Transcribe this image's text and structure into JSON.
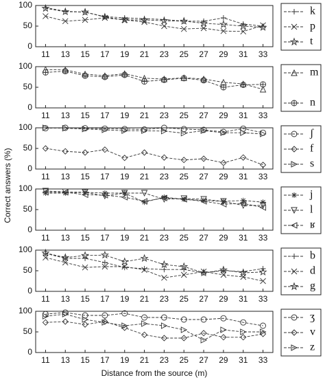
{
  "ylabel": "Correct answers (%)",
  "xlabel": "Distance from the source (m)",
  "chart_data": [
    {
      "type": "line",
      "x": [
        11,
        13,
        15,
        17,
        19,
        21,
        23,
        25,
        27,
        29,
        31,
        33
      ],
      "xlim": [
        10,
        34
      ],
      "xticks": [
        11,
        13,
        15,
        17,
        19,
        21,
        23,
        25,
        27,
        29,
        31,
        33
      ],
      "ylim": [
        0,
        100
      ],
      "yticks": [
        0,
        50,
        100
      ],
      "series": [
        {
          "name": "k",
          "color": "#333333",
          "marker": "plus",
          "values": [
            95,
            86,
            84,
            73,
            70,
            68,
            66,
            62,
            62,
            70,
            55,
            50
          ]
        },
        {
          "name": "p",
          "color": "#333333",
          "marker": "x",
          "values": [
            74,
            62,
            65,
            70,
            65,
            60,
            50,
            43,
            45,
            38,
            37,
            52
          ]
        },
        {
          "name": "t",
          "color": "#333333",
          "marker": "star",
          "values": [
            93,
            85,
            84,
            72,
            65,
            65,
            63,
            62,
            57,
            54,
            50,
            47
          ]
        }
      ]
    },
    {
      "type": "line",
      "x": [
        11,
        13,
        15,
        17,
        19,
        21,
        23,
        25,
        27,
        29,
        31,
        33
      ],
      "xlim": [
        10,
        34
      ],
      "xticks": [
        11,
        13,
        15,
        17,
        19,
        21,
        23,
        25,
        27,
        29,
        31,
        33
      ],
      "ylim": [
        0,
        100
      ],
      "yticks": [
        0,
        50,
        100
      ],
      "series": [
        {
          "name": "m",
          "color": "#333333",
          "marker": "triangle",
          "values": [
            93,
            92,
            82,
            78,
            83,
            72,
            70,
            73,
            70,
            62,
            58,
            45
          ]
        },
        {
          "name": "n",
          "color": "#333333",
          "marker": "circleplus",
          "values": [
            86,
            89,
            78,
            75,
            80,
            64,
            68,
            72,
            67,
            50,
            56,
            57
          ]
        }
      ]
    },
    {
      "type": "line",
      "x": [
        11,
        13,
        15,
        17,
        19,
        21,
        23,
        25,
        27,
        29,
        31,
        33
      ],
      "xlim": [
        10,
        34
      ],
      "xticks": [
        11,
        13,
        15,
        17,
        19,
        21,
        23,
        25,
        27,
        29,
        31,
        33
      ],
      "ylim": [
        0,
        100
      ],
      "yticks": [
        0,
        50,
        100
      ],
      "series": [
        {
          "name": "ʃ",
          "color": "#333333",
          "marker": "circle",
          "values": [
            99,
            100,
            99,
            98,
            97,
            96,
            100,
            97,
            95,
            90,
            98,
            88
          ]
        },
        {
          "name": "f",
          "color": "#333333",
          "marker": "diamond",
          "values": [
            50,
            43,
            40,
            47,
            27,
            40,
            28,
            22,
            25,
            15,
            28,
            10
          ]
        },
        {
          "name": "s",
          "color": "#333333",
          "marker": "triangle-right",
          "values": [
            100,
            99,
            97,
            95,
            93,
            93,
            92,
            87,
            93,
            88,
            88,
            85
          ]
        }
      ]
    },
    {
      "type": "line",
      "x": [
        11,
        13,
        15,
        17,
        19,
        21,
        23,
        25,
        27,
        29,
        31,
        33
      ],
      "xlim": [
        10,
        34
      ],
      "xticks": [
        11,
        13,
        15,
        17,
        19,
        21,
        23,
        25,
        27,
        29,
        31,
        33
      ],
      "ylim": [
        0,
        100
      ],
      "yticks": [
        0,
        50,
        100
      ],
      "series": [
        {
          "name": "j",
          "color": "#333333",
          "marker": "asterisk",
          "values": [
            90,
            90,
            92,
            90,
            90,
            68,
            80,
            75,
            72,
            70,
            72,
            68
          ]
        },
        {
          "name": "l",
          "color": "#333333",
          "marker": "triangle-down",
          "values": [
            95,
            93,
            92,
            83,
            90,
            90,
            75,
            77,
            75,
            70,
            60,
            60
          ]
        },
        {
          "name": "ʁ",
          "color": "#333333",
          "marker": "triangle-left",
          "values": [
            92,
            92,
            86,
            85,
            80,
            70,
            78,
            75,
            70,
            63,
            65,
            55
          ]
        }
      ]
    },
    {
      "type": "line",
      "x": [
        11,
        13,
        15,
        17,
        19,
        21,
        23,
        25,
        27,
        29,
        31,
        33
      ],
      "xlim": [
        10,
        34
      ],
      "xticks": [
        11,
        13,
        15,
        17,
        19,
        21,
        23,
        25,
        27,
        29,
        31,
        33
      ],
      "ylim": [
        0,
        100
      ],
      "yticks": [
        0,
        50,
        100
      ],
      "series": [
        {
          "name": "b",
          "color": "#333333",
          "marker": "plus",
          "values": [
            92,
            80,
            80,
            70,
            58,
            55,
            53,
            53,
            45,
            50,
            48,
            55
          ]
        },
        {
          "name": "d",
          "color": "#333333",
          "marker": "x",
          "values": [
            82,
            70,
            58,
            60,
            60,
            52,
            33,
            40,
            48,
            40,
            35,
            25
          ]
        },
        {
          "name": "g",
          "color": "#333333",
          "marker": "star",
          "values": [
            93,
            82,
            87,
            88,
            72,
            80,
            65,
            60,
            45,
            52,
            45,
            47
          ]
        }
      ]
    },
    {
      "type": "line",
      "x": [
        11,
        13,
        15,
        17,
        19,
        21,
        23,
        25,
        27,
        29,
        31,
        33
      ],
      "xlim": [
        10,
        34
      ],
      "xticks": [
        11,
        13,
        15,
        17,
        19,
        21,
        23,
        25,
        27,
        29,
        31,
        33
      ],
      "ylim": [
        0,
        100
      ],
      "yticks": [
        0,
        50,
        100
      ],
      "series": [
        {
          "name": "ʒ",
          "color": "#333333",
          "marker": "circle",
          "values": [
            93,
            97,
            90,
            90,
            95,
            85,
            85,
            80,
            80,
            83,
            73,
            65
          ]
        },
        {
          "name": "v",
          "color": "#333333",
          "marker": "diamond",
          "values": [
            73,
            75,
            68,
            75,
            60,
            43,
            35,
            35,
            47,
            37,
            37,
            45
          ]
        },
        {
          "name": "z",
          "color": "#333333",
          "marker": "triangle-right",
          "values": [
            88,
            93,
            80,
            73,
            65,
            70,
            65,
            55,
            30,
            55,
            50,
            50
          ]
        }
      ]
    }
  ]
}
